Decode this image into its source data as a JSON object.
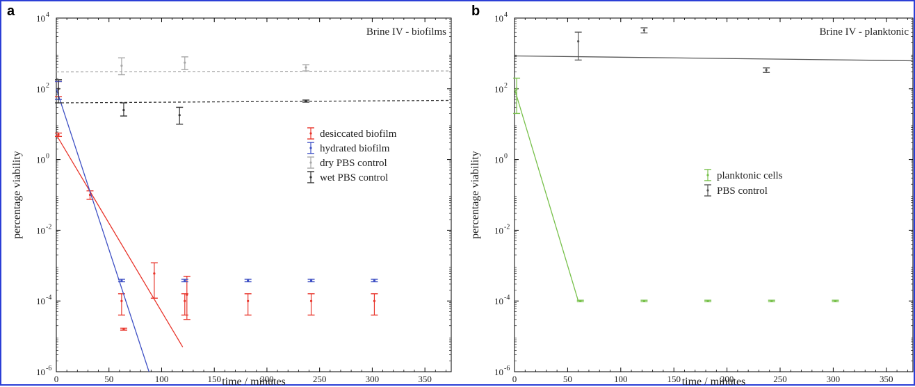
{
  "chart_data": [
    {
      "type": "scatter",
      "panel_label": "a",
      "title": "Brine IV - biofilms",
      "xlabel": "time / minutes",
      "ylabel": "percentage viability",
      "xlim": [
        0,
        375
      ],
      "ylim": [
        1e-06,
        10000
      ],
      "log_y": true,
      "xticks": [
        0,
        50,
        100,
        150,
        200,
        250,
        300,
        350
      ],
      "yticks": [
        1e-06,
        0.0001,
        0.01,
        1,
        100,
        10000
      ],
      "ytick_labels": [
        [
          "10",
          "-6"
        ],
        [
          "10",
          "-4"
        ],
        [
          "10",
          "-2"
        ],
        [
          "10",
          "0"
        ],
        [
          "10",
          "2"
        ],
        [
          "10",
          "4"
        ]
      ],
      "legend_position": "center-right",
      "series": [
        {
          "name": "desiccated biofilm",
          "color": "#e8342a",
          "points": [
            {
              "x": 2,
              "y": 100,
              "lo": 60,
              "hi": 160
            },
            {
              "x": 2,
              "y": 5,
              "lo": 4.5,
              "hi": 5.6
            },
            {
              "x": 32,
              "y": 0.1,
              "lo": 0.075,
              "hi": 0.13
            },
            {
              "x": 62,
              "y": 0.0001,
              "lo": 4e-05,
              "hi": 0.00016
            },
            {
              "x": 64,
              "y": 1.6e-05,
              "lo": 1.5e-05,
              "hi": 1.7e-05
            },
            {
              "x": 93,
              "y": 0.0006,
              "lo": 0.00012,
              "hi": 0.0012
            },
            {
              "x": 122,
              "y": 0.0001,
              "lo": 4e-05,
              "hi": 0.00016
            },
            {
              "x": 124,
              "y": 0.00015,
              "lo": 3e-05,
              "hi": 0.0005
            },
            {
              "x": 182,
              "y": 0.0001,
              "lo": 4e-05,
              "hi": 0.00016
            },
            {
              "x": 242,
              "y": 0.0001,
              "lo": 4e-05,
              "hi": 0.00016
            },
            {
              "x": 302,
              "y": 0.0001,
              "lo": 4e-05,
              "hi": 0.00016
            }
          ],
          "fit": {
            "x": [
              0,
              120
            ],
            "y": [
              5,
              5e-06
            ],
            "style": "solid"
          }
        },
        {
          "name": "hydrated biofilm",
          "color": "#3d4fc4",
          "points": [
            {
              "x": 2,
              "y": 100,
              "lo": 50,
              "hi": 160
            },
            {
              "x": 62,
              "y": 0.00038,
              "lo": 0.00035,
              "hi": 0.00041
            },
            {
              "x": 122,
              "y": 0.00038,
              "lo": 0.00035,
              "hi": 0.00041
            },
            {
              "x": 182,
              "y": 0.00038,
              "lo": 0.00035,
              "hi": 0.00041
            },
            {
              "x": 242,
              "y": 0.00038,
              "lo": 0.00035,
              "hi": 0.00041
            },
            {
              "x": 302,
              "y": 0.00038,
              "lo": 0.00035,
              "hi": 0.00041
            }
          ],
          "fit": {
            "x": [
              0,
              88
            ],
            "y": [
              100,
              1e-06
            ],
            "style": "solid"
          }
        },
        {
          "name": "dry PBS control",
          "color": "#a6a6a6",
          "points": [
            {
              "x": 62,
              "y": 450,
              "lo": 250,
              "hi": 750
            },
            {
              "x": 122,
              "y": 550,
              "lo": 350,
              "hi": 800
            },
            {
              "x": 237,
              "y": 400,
              "lo": 320,
              "hi": 480
            }
          ],
          "fit": {
            "x": [
              0,
              375
            ],
            "y": [
              300,
              320
            ],
            "style": "dashed"
          }
        },
        {
          "name": "wet PBS control",
          "color": "#333333",
          "points": [
            {
              "x": 2,
              "y": 100,
              "lo": 40,
              "hi": 180
            },
            {
              "x": 64,
              "y": 25,
              "lo": 17,
              "hi": 40
            },
            {
              "x": 117,
              "y": 18,
              "lo": 10,
              "hi": 30
            },
            {
              "x": 237,
              "y": 45,
              "lo": 42,
              "hi": 48
            }
          ],
          "fit": {
            "x": [
              0,
              375
            ],
            "y": [
              40,
              47
            ],
            "style": "dashed"
          }
        }
      ]
    },
    {
      "type": "scatter",
      "panel_label": "b",
      "title": "Brine IV - planktonic",
      "xlabel": "time / minutes",
      "ylabel": "percentage viability",
      "xlim": [
        0,
        375
      ],
      "ylim": [
        1e-06,
        10000
      ],
      "log_y": true,
      "xticks": [
        0,
        50,
        100,
        150,
        200,
        250,
        300,
        350
      ],
      "yticks": [
        1e-06,
        0.0001,
        0.01,
        1,
        100,
        10000
      ],
      "ytick_labels": [
        [
          "10",
          "-6"
        ],
        [
          "10",
          "-4"
        ],
        [
          "10",
          "-2"
        ],
        [
          "10",
          "0"
        ],
        [
          "10",
          "2"
        ],
        [
          "10",
          "4"
        ]
      ],
      "legend_position": "center-right",
      "series": [
        {
          "name": "planktonic cells",
          "color": "#77c04a",
          "points": [
            {
              "x": 2,
              "y": 100,
              "lo": 20,
              "hi": 200
            },
            {
              "x": 62,
              "y": 0.0001,
              "lo": 9.5e-05,
              "hi": 0.000105
            },
            {
              "x": 122,
              "y": 0.0001,
              "lo": 9.5e-05,
              "hi": 0.000105
            },
            {
              "x": 182,
              "y": 0.0001,
              "lo": 9.5e-05,
              "hi": 0.000105
            },
            {
              "x": 242,
              "y": 0.0001,
              "lo": 9.5e-05,
              "hi": 0.000105
            },
            {
              "x": 302,
              "y": 0.0001,
              "lo": 9.5e-05,
              "hi": 0.000105
            }
          ],
          "fit": {
            "x": [
              0,
              60
            ],
            "y": [
              100,
              0.0001
            ],
            "style": "solid"
          }
        },
        {
          "name": "PBS control",
          "color": "#555555",
          "points": [
            {
              "x": 60,
              "y": 2200,
              "lo": 650,
              "hi": 4000
            },
            {
              "x": 122,
              "y": 4500,
              "lo": 3800,
              "hi": 5300
            },
            {
              "x": 237,
              "y": 340,
              "lo": 290,
              "hi": 390
            }
          ],
          "fit": {
            "x": [
              0,
              375
            ],
            "y": [
              850,
              620
            ],
            "style": "solid"
          }
        }
      ]
    }
  ]
}
